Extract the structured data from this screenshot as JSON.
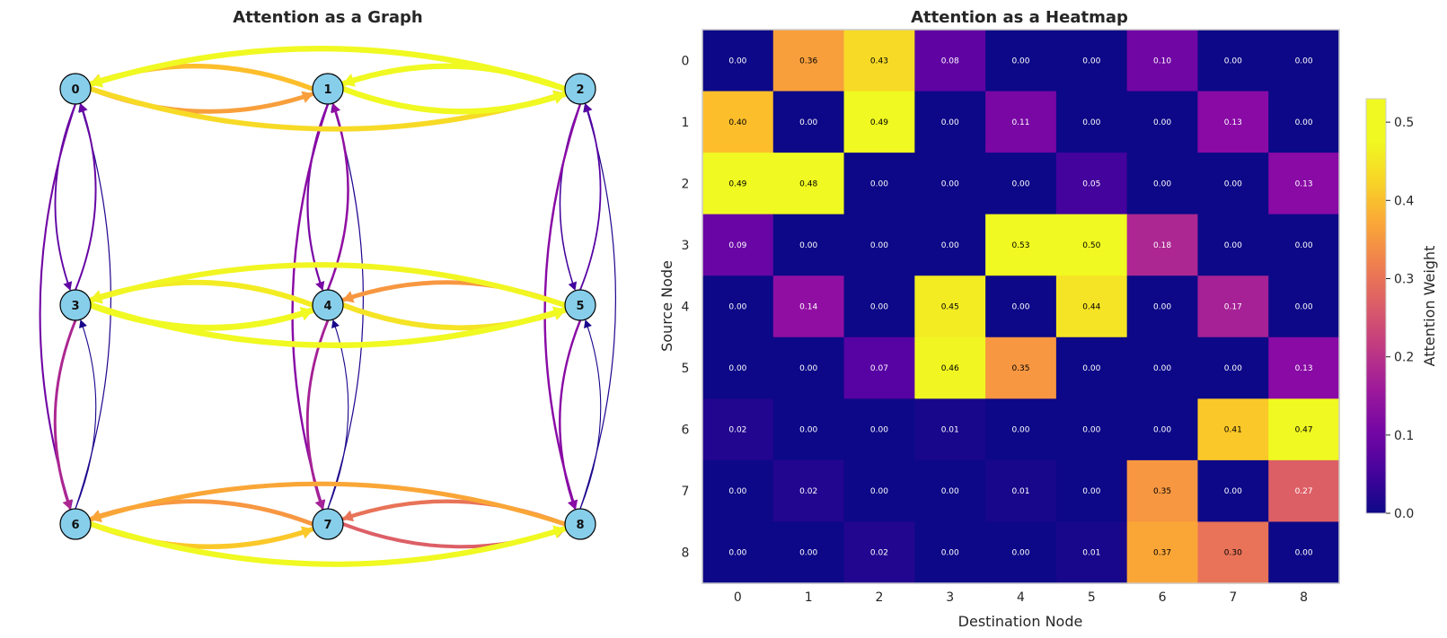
{
  "graph_panel": {
    "title": "Attention as a Graph"
  },
  "heatmap_panel": {
    "title": "Attention as a Heatmap",
    "xlabel": "Destination Node",
    "ylabel": "Source Node",
    "colorbar_label": "Attention Weight",
    "colorbar_ticks": [
      "0.0",
      "0.1",
      "0.2",
      "0.3",
      "0.4",
      "0.5"
    ],
    "colormap": "plasma"
  },
  "chart_data": [
    {
      "type": "network",
      "title": "Attention as a Graph",
      "nodes": [
        "0",
        "1",
        "2",
        "3",
        "4",
        "5",
        "6",
        "7",
        "8"
      ],
      "node_color": "#87ceeb",
      "edges_from_weights": "heatmap matrix (source row → destination column), drawn for weights > 0"
    },
    {
      "type": "heatmap",
      "title": "Attention as a Heatmap",
      "xlabel": "Destination Node",
      "ylabel": "Source Node",
      "x_categories": [
        "0",
        "1",
        "2",
        "3",
        "4",
        "5",
        "6",
        "7",
        "8"
      ],
      "y_categories": [
        "0",
        "1",
        "2",
        "3",
        "4",
        "5",
        "6",
        "7",
        "8"
      ],
      "colorbar_label": "Attention Weight",
      "colorbar_range": [
        0.0,
        0.53
      ],
      "values": [
        [
          "0.00",
          "0.36",
          "0.43",
          "0.08",
          "0.00",
          "0.00",
          "0.10",
          "0.00",
          "0.00"
        ],
        [
          "0.40",
          "0.00",
          "0.49",
          "0.00",
          "0.11",
          "0.00",
          "0.00",
          "0.13",
          "0.00"
        ],
        [
          "0.49",
          "0.48",
          "0.00",
          "0.00",
          "0.00",
          "0.05",
          "0.00",
          "0.00",
          "0.13"
        ],
        [
          "0.09",
          "0.00",
          "0.00",
          "0.00",
          "0.53",
          "0.50",
          "0.18",
          "0.00",
          "0.00"
        ],
        [
          "0.00",
          "0.14",
          "0.00",
          "0.45",
          "0.00",
          "0.44",
          "0.00",
          "0.17",
          "0.00"
        ],
        [
          "0.00",
          "0.00",
          "0.07",
          "0.46",
          "0.35",
          "0.00",
          "0.00",
          "0.00",
          "0.13"
        ],
        [
          "0.02",
          "0.00",
          "0.00",
          "0.01",
          "0.00",
          "0.00",
          "0.00",
          "0.41",
          "0.47"
        ],
        [
          "0.00",
          "0.02",
          "0.00",
          "0.00",
          "0.01",
          "0.00",
          "0.35",
          "0.00",
          "0.27"
        ],
        [
          "0.00",
          "0.00",
          "0.02",
          "0.00",
          "0.00",
          "0.01",
          "0.37",
          "0.30",
          "0.00"
        ]
      ]
    }
  ]
}
